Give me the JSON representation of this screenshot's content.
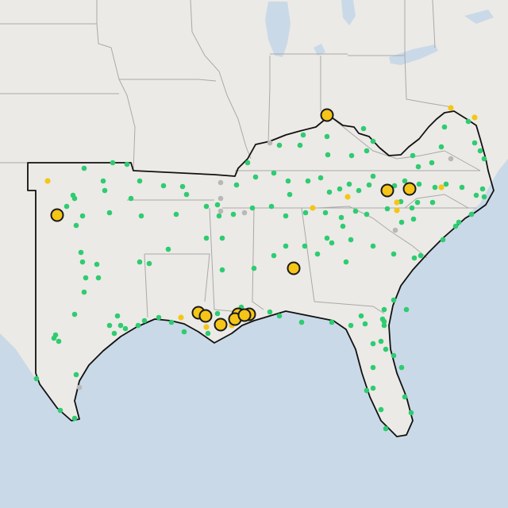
{
  "map": {
    "colors": {
      "water": "#c9d9e8",
      "land": "#eceae6",
      "region_fill": "#efece8",
      "region_outline": "#111111",
      "state_lines": "#a9a9a9",
      "marker_green": "#2ecc71",
      "marker_yellow": "#f5c518",
      "marker_gray": "#b8b8b8",
      "marker_stroke_large": "#1a1a1a"
    },
    "markers": {
      "large_yellow_count": 12,
      "legend": []
    }
  }
}
